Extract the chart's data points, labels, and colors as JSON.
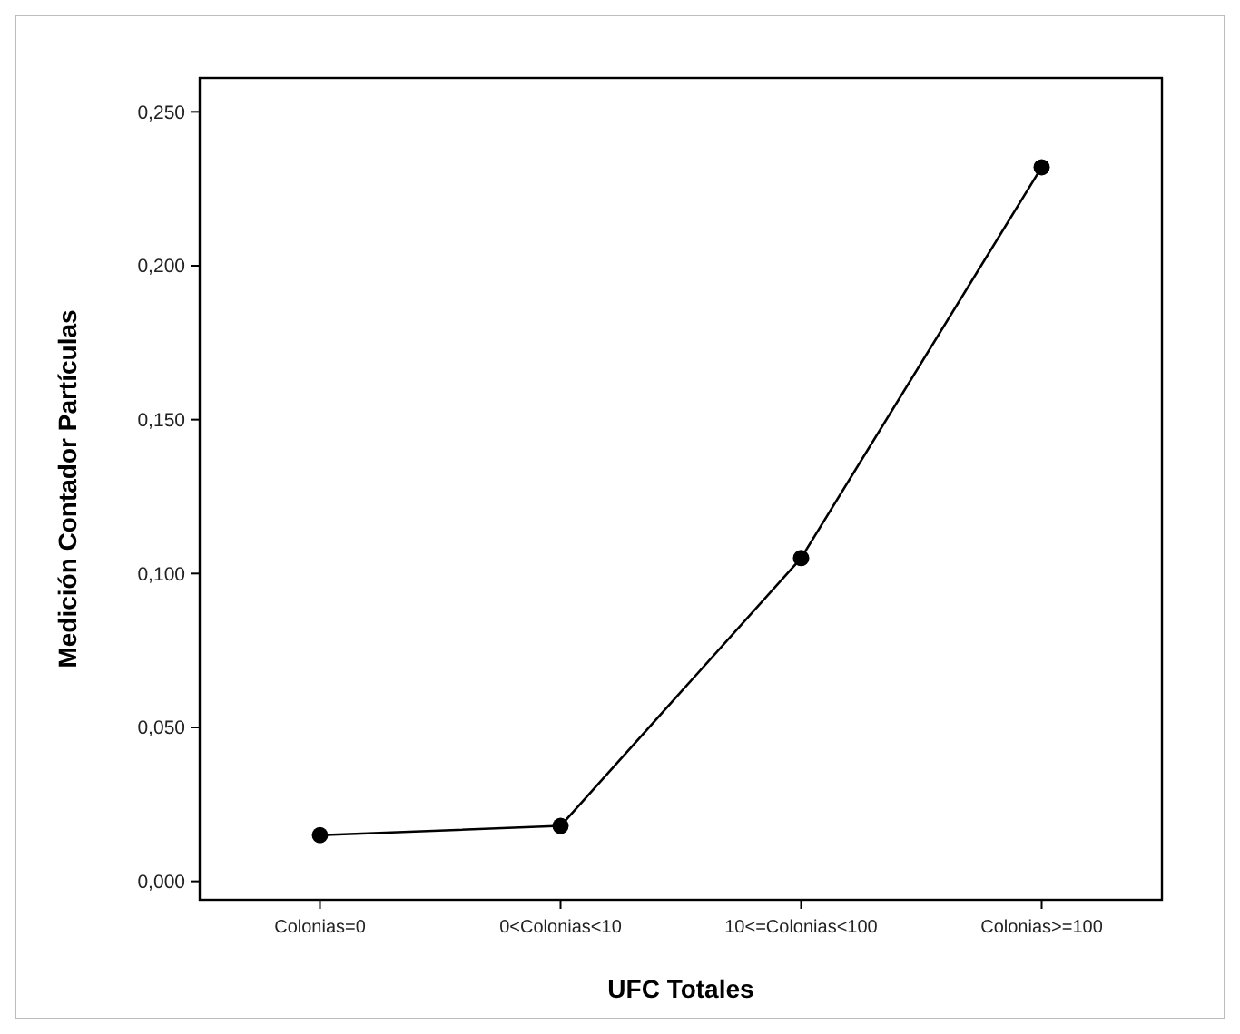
{
  "chart_data": {
    "type": "line",
    "xlabel": "UFC Totales",
    "ylabel": "Medición Contador Partículas",
    "categories": [
      "Colonias=0",
      "0<Colonias<10",
      "10<=Colonias<100",
      "Colonias>=100"
    ],
    "values": [
      0.015,
      0.018,
      0.105,
      0.232
    ],
    "color": "#000000",
    "marker": "circle",
    "line_style": "solid",
    "ylim": [
      -0.006,
      0.261
    ],
    "yticks": [
      {
        "value": 0,
        "label": "0,000"
      },
      {
        "value": 0.05,
        "label": "0,050"
      },
      {
        "value": 0.1,
        "label": "0,100"
      },
      {
        "value": 0.15,
        "label": "0,150"
      },
      {
        "value": 0.2,
        "label": "0,200"
      },
      {
        "value": 0.25,
        "label": "0,250"
      }
    ],
    "grid": false
  }
}
